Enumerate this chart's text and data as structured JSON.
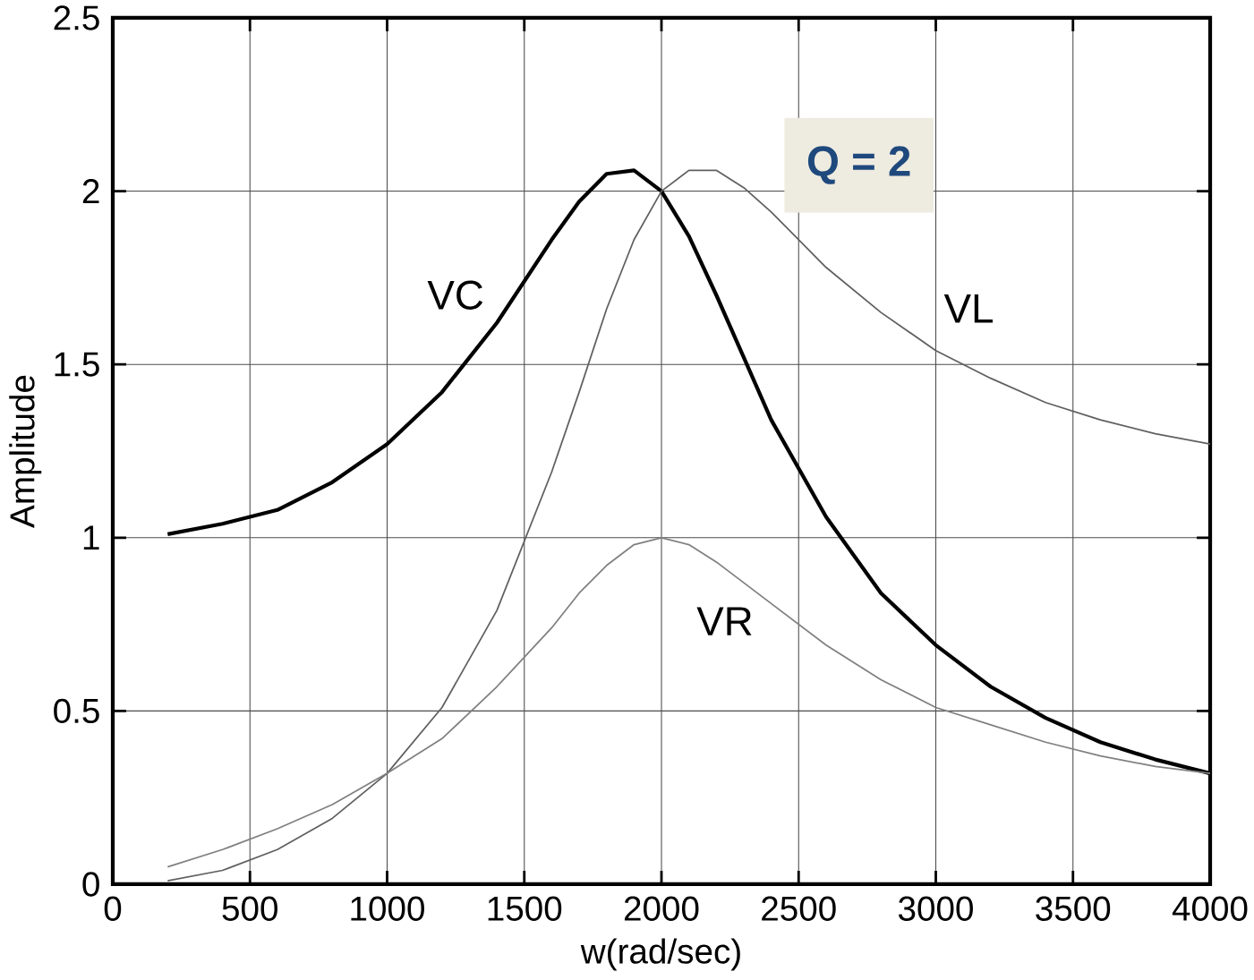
{
  "chart_data": {
    "type": "line",
    "xlabel": "w(rad/sec)",
    "ylabel": "Amplitude",
    "x": [
      200,
      400,
      600,
      800,
      1000,
      1200,
      1400,
      1600,
      1700,
      1800,
      1900,
      2000,
      2100,
      2200,
      2300,
      2400,
      2600,
      2800,
      3000,
      3200,
      3400,
      3600,
      3800,
      4000
    ],
    "series": [
      {
        "name": "VC",
        "color": "#000000",
        "values": [
          1.01,
          1.04,
          1.08,
          1.16,
          1.27,
          1.42,
          1.62,
          1.86,
          1.97,
          2.05,
          2.06,
          2.0,
          1.87,
          1.7,
          1.52,
          1.34,
          1.06,
          0.84,
          0.69,
          0.57,
          0.48,
          0.41,
          0.36,
          0.32
        ]
      },
      {
        "name": "VL",
        "color": "#606060",
        "values": [
          0.01,
          0.04,
          0.1,
          0.19,
          0.32,
          0.51,
          0.79,
          1.19,
          1.42,
          1.66,
          1.86,
          2.0,
          2.06,
          2.06,
          2.01,
          1.94,
          1.78,
          1.65,
          1.54,
          1.46,
          1.39,
          1.34,
          1.3,
          1.27
        ]
      },
      {
        "name": "VR",
        "color": "#808080",
        "values": [
          0.05,
          0.1,
          0.16,
          0.23,
          0.32,
          0.42,
          0.57,
          0.74,
          0.84,
          0.92,
          0.98,
          1.0,
          0.98,
          0.93,
          0.87,
          0.81,
          0.69,
          0.59,
          0.51,
          0.46,
          0.41,
          0.37,
          0.34,
          0.32
        ]
      }
    ],
    "annotations": [
      "Q = 2"
    ],
    "xlim": [
      0,
      4000
    ],
    "ylim": [
      0,
      2.5
    ],
    "xticks": [
      0,
      500,
      1000,
      1500,
      2000,
      2500,
      3000,
      3500,
      4000
    ],
    "yticks": [
      0,
      0.5,
      1,
      1.5,
      2,
      {
        "value": 2.5,
        "label": "2.5"
      }
    ],
    "grid": true,
    "marker": "none",
    "line_style": "solid"
  }
}
